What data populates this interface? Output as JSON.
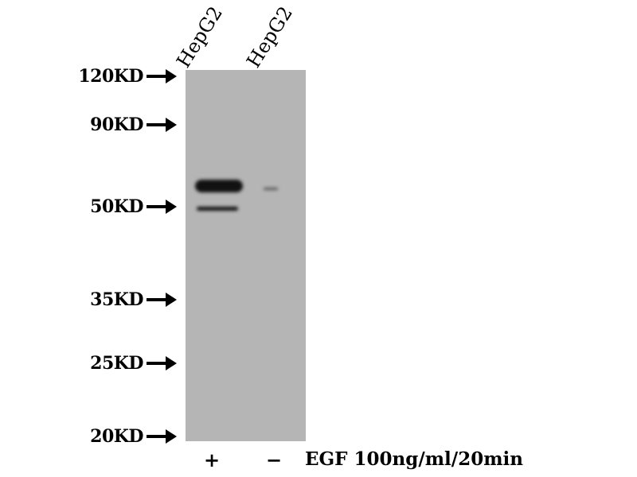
{
  "lanes": [
    {
      "label": "HepG2",
      "treatment": "+"
    },
    {
      "label": "HepG2",
      "treatment": "−"
    }
  ],
  "treatment_label": "EGF 100ng/ml/20min",
  "markers": [
    "120KD",
    "90KD",
    "50KD",
    "35KD",
    "25KD",
    "20KD"
  ],
  "colors": {
    "membrane": "#b5b5b5",
    "band": "#111111"
  }
}
